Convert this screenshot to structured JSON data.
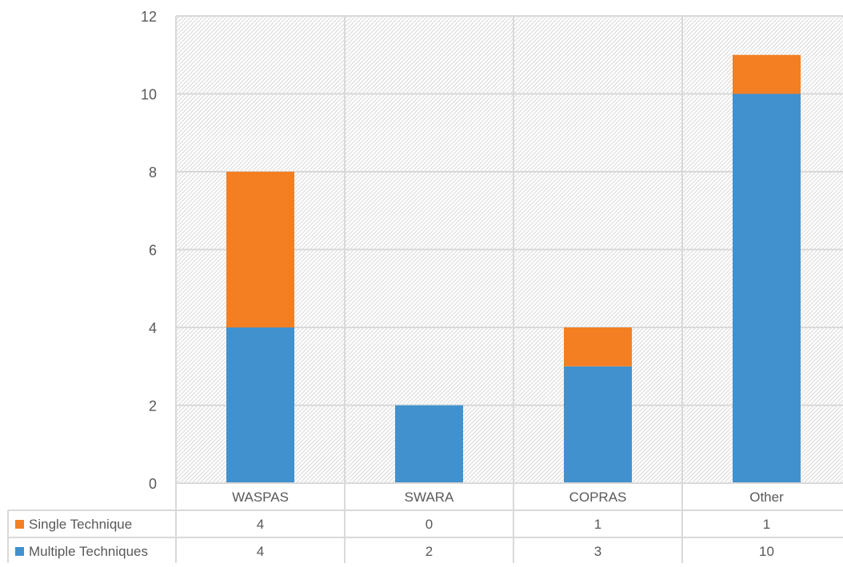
{
  "chart_data": {
    "type": "bar",
    "stacked": true,
    "categories": [
      "WASPAS",
      "SWARA",
      "COPRAS",
      "Other"
    ],
    "series": [
      {
        "name": "Multiple Techniques",
        "values": [
          4,
          2,
          3,
          10
        ],
        "color": "#4191CE"
      },
      {
        "name": "Single Technique",
        "values": [
          4,
          0,
          1,
          1
        ],
        "color": "#F47F22"
      }
    ],
    "ylim": [
      0,
      12
    ],
    "yticks": [
      "0",
      "2",
      "4",
      "6",
      "8",
      "10",
      "12"
    ],
    "grid": true,
    "plot_background": "hatched light grey",
    "data_table": {
      "rows": [
        {
          "name": "Single Technique",
          "values": [
            "4",
            "0",
            "1",
            "1"
          ],
          "color": "#F47F22"
        },
        {
          "name": "Multiple Techniques",
          "values": [
            "4",
            "2",
            "3",
            "10"
          ],
          "color": "#4191CE"
        }
      ]
    }
  }
}
